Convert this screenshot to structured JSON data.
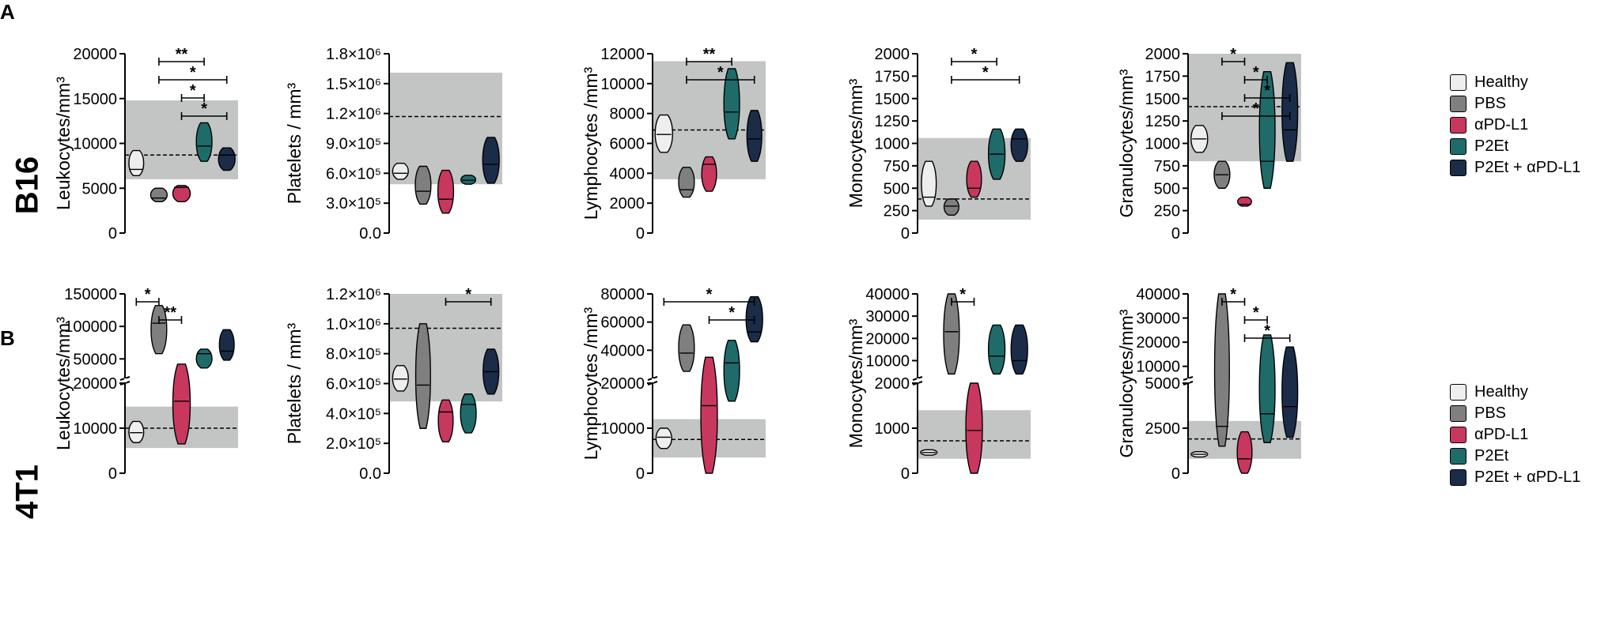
{
  "figure": {
    "panel_labels": {
      "a": "A",
      "b": "B"
    },
    "row_labels": {
      "top": "B16",
      "bottom": "4T1"
    }
  },
  "legend": [
    {
      "label": "Healthy",
      "color": "#eeeeee"
    },
    {
      "label": "PBS",
      "color": "#7f7f7f"
    },
    {
      "label": "αPD-L1",
      "color": "#c8385e"
    },
    {
      "label": "P2Et",
      "color": "#1e6b6a"
    },
    {
      "label": "P2Et + αPD-L1",
      "color": "#1a2c48"
    }
  ],
  "chart_data": [
    {
      "type": "violin",
      "row": "B16",
      "ylabel": "Leukocytes/mm³",
      "ylim": [
        0,
        20000
      ],
      "yticks": [
        {
          "v": 0,
          "t": "0"
        },
        {
          "v": 5000,
          "t": "5000"
        },
        {
          "v": 10000,
          "t": "10000"
        },
        {
          "v": 15000,
          "t": "15000"
        },
        {
          "v": 20000,
          "t": "20000"
        }
      ],
      "reference_band": [
        6000,
        14800
      ],
      "reference_line": 8700,
      "groups": [
        {
          "name": "Healthy",
          "min": 6400,
          "max": 9200,
          "median": 7100,
          "width": 0.85
        },
        {
          "name": "PBS",
          "min": 3500,
          "max": 5000,
          "median": 3900,
          "width": 0.95
        },
        {
          "name": "αPD-L1",
          "min": 3500,
          "max": 5300,
          "median": 5100,
          "width": 1.0
        },
        {
          "name": "P2Et",
          "min": 8000,
          "max": 12300,
          "median": 9700,
          "width": 0.9
        },
        {
          "name": "P2Et + αPD-L1",
          "min": 7000,
          "max": 9500,
          "median": 8700,
          "width": 0.95
        }
      ],
      "significance": [
        {
          "from": 1,
          "to": 3,
          "label": "**"
        },
        {
          "from": 1,
          "to": 4,
          "label": "*"
        },
        {
          "from": 2,
          "to": 3,
          "label": "*"
        },
        {
          "from": 2,
          "to": 4,
          "label": "*"
        }
      ]
    },
    {
      "type": "violin",
      "row": "B16",
      "ylabel": "Platelets / mm³",
      "ylim": [
        0,
        1800000
      ],
      "yticks": [
        {
          "v": 0,
          "t": "0.0"
        },
        {
          "v": 300000,
          "t": "3.0×10⁵"
        },
        {
          "v": 600000,
          "t": "6.0×10⁵"
        },
        {
          "v": 900000,
          "t": "9.0×10⁵"
        },
        {
          "v": 1200000,
          "t": "1.2×10⁶"
        },
        {
          "v": 1500000,
          "t": "1.5×10⁶"
        },
        {
          "v": 1800000,
          "t": "1.8×10⁶"
        }
      ],
      "reference_band": [
        490000,
        1610000
      ],
      "reference_line": 1170000,
      "groups": [
        {
          "name": "Healthy",
          "min": 540000,
          "max": 700000,
          "median": 600000,
          "width": 0.9
        },
        {
          "name": "PBS",
          "min": 290000,
          "max": 670000,
          "median": 420000,
          "width": 0.9
        },
        {
          "name": "αPD-L1",
          "min": 200000,
          "max": 630000,
          "median": 340000,
          "width": 0.9
        },
        {
          "name": "P2Et",
          "min": 490000,
          "max": 580000,
          "median": 530000,
          "width": 0.85
        },
        {
          "name": "P2Et + αPD-L1",
          "min": 500000,
          "max": 960000,
          "median": 690000,
          "width": 0.95
        }
      ],
      "significance": []
    },
    {
      "type": "violin",
      "row": "B16",
      "ylabel": "Lymphocytes /mm³",
      "ylim": [
        0,
        12000
      ],
      "yticks": [
        {
          "v": 0,
          "t": "0"
        },
        {
          "v": 2000,
          "t": "2000"
        },
        {
          "v": 4000,
          "t": "4000"
        },
        {
          "v": 6000,
          "t": "6000"
        },
        {
          "v": 8000,
          "t": "8000"
        },
        {
          "v": 10000,
          "t": "10000"
        },
        {
          "v": 12000,
          "t": "12000"
        }
      ],
      "reference_band": [
        3600,
        11500
      ],
      "reference_line": 6900,
      "groups": [
        {
          "name": "Healthy",
          "min": 5400,
          "max": 7900,
          "median": 6600,
          "width": 1.0
        },
        {
          "name": "PBS",
          "min": 2400,
          "max": 4400,
          "median": 2900,
          "width": 0.9
        },
        {
          "name": "αPD-L1",
          "min": 2800,
          "max": 5100,
          "median": 4600,
          "width": 0.85
        },
        {
          "name": "P2Et",
          "min": 6300,
          "max": 11000,
          "median": 8100,
          "width": 0.9
        },
        {
          "name": "P2Et + αPD-L1",
          "min": 4800,
          "max": 8200,
          "median": 6300,
          "width": 0.85
        }
      ],
      "significance": [
        {
          "from": 1,
          "to": 3,
          "label": "**"
        },
        {
          "from": 1,
          "to": 4,
          "label": "*"
        }
      ]
    },
    {
      "type": "violin",
      "row": "B16",
      "ylabel": "Monocytes/mm³",
      "ylim": [
        0,
        2000
      ],
      "yticks": [
        {
          "v": 0,
          "t": "0"
        },
        {
          "v": 250,
          "t": "250"
        },
        {
          "v": 500,
          "t": "500"
        },
        {
          "v": 750,
          "t": "750"
        },
        {
          "v": 1000,
          "t": "1000"
        },
        {
          "v": 1250,
          "t": "1250"
        },
        {
          "v": 1500,
          "t": "1500"
        },
        {
          "v": 1750,
          "t": "1750"
        },
        {
          "v": 2000,
          "t": "2000"
        }
      ],
      "reference_band": [
        150,
        1060
      ],
      "reference_line": 380,
      "groups": [
        {
          "name": "Healthy",
          "min": 300,
          "max": 800,
          "median": 400,
          "width": 0.85
        },
        {
          "name": "PBS",
          "min": 200,
          "max": 380,
          "median": 300,
          "width": 0.85
        },
        {
          "name": "αPD-L1",
          "min": 400,
          "max": 800,
          "median": 500,
          "width": 0.85
        },
        {
          "name": "P2Et",
          "min": 600,
          "max": 1160,
          "median": 880,
          "width": 0.95
        },
        {
          "name": "P2Et + αPD-L1",
          "min": 800,
          "max": 1160,
          "median": 1050,
          "width": 0.95
        }
      ],
      "significance": [
        {
          "from": 1,
          "to": 3,
          "label": "*"
        },
        {
          "from": 1,
          "to": 4,
          "label": "*"
        }
      ]
    },
    {
      "type": "violin",
      "row": "B16",
      "ylabel": "Granulocytes/mm³",
      "ylim": [
        0,
        2000
      ],
      "yticks": [
        {
          "v": 0,
          "t": "0"
        },
        {
          "v": 250,
          "t": "250"
        },
        {
          "v": 500,
          "t": "500"
        },
        {
          "v": 750,
          "t": "750"
        },
        {
          "v": 1000,
          "t": "1000"
        },
        {
          "v": 1250,
          "t": "1250"
        },
        {
          "v": 1500,
          "t": "1500"
        },
        {
          "v": 1750,
          "t": "1750"
        },
        {
          "v": 2000,
          "t": "2000"
        }
      ],
      "reference_band": [
        800,
        2000
      ],
      "reference_line": 1410,
      "groups": [
        {
          "name": "Healthy",
          "min": 900,
          "max": 1200,
          "median": 1050,
          "width": 0.95
        },
        {
          "name": "PBS",
          "min": 500,
          "max": 800,
          "median": 650,
          "width": 0.9
        },
        {
          "name": "αPD-L1",
          "min": 300,
          "max": 400,
          "median": 320,
          "width": 0.8
        },
        {
          "name": "P2Et",
          "min": 500,
          "max": 1800,
          "median": 800,
          "width": 0.9
        },
        {
          "name": "P2Et + αPD-L1",
          "min": 800,
          "max": 1900,
          "median": 1150,
          "width": 0.9
        }
      ],
      "significance": [
        {
          "from": 1,
          "to": 2,
          "label": "*"
        },
        {
          "from": 2,
          "to": 3,
          "label": "*"
        },
        {
          "from": 2,
          "to": 4,
          "label": "*"
        },
        {
          "from": 1,
          "to": 4,
          "label": "*"
        }
      ]
    },
    {
      "type": "violin",
      "row": "4T1",
      "axis_break": true,
      "ylabel": "Leukocytes/mm³",
      "lower_range": [
        0,
        20000
      ],
      "upper_range": [
        20000,
        150000
      ],
      "yticks": [
        {
          "v": 0,
          "t": "0"
        },
        {
          "v": 10000,
          "t": "10000"
        },
        {
          "v": 20000,
          "t": "20000"
        },
        {
          "v": 50000,
          "t": "50000"
        },
        {
          "v": 100000,
          "t": "100000"
        },
        {
          "v": 150000,
          "t": "150000"
        }
      ],
      "reference_band": [
        5600,
        14800
      ],
      "reference_line": 10000,
      "groups": [
        {
          "name": "Healthy",
          "min": 6800,
          "max": 11500,
          "median": 9000,
          "width": 0.85
        },
        {
          "name": "PBS",
          "min": 58000,
          "max": 132000,
          "median": 105000,
          "width": 0.9
        },
        {
          "name": "αPD-L1",
          "min": 6500,
          "max": 42000,
          "median": 16000,
          "width": 1.0
        },
        {
          "name": "P2Et",
          "min": 36000,
          "max": 65000,
          "median": 58000,
          "width": 0.9
        },
        {
          "name": "P2Et + αPD-L1",
          "min": 48000,
          "max": 95000,
          "median": 62000,
          "width": 0.85
        }
      ],
      "significance": [
        {
          "from": 0,
          "to": 1,
          "label": "*"
        },
        {
          "from": 1,
          "to": 2,
          "label": "**"
        }
      ]
    },
    {
      "type": "violin",
      "row": "4T1",
      "ylabel": "Platelets / mm³",
      "ylim": [
        0,
        1200000
      ],
      "yticks": [
        {
          "v": 0,
          "t": "0.0"
        },
        {
          "v": 200000,
          "t": "2.0×10⁵"
        },
        {
          "v": 400000,
          "t": "4.0×10⁵"
        },
        {
          "v": 600000,
          "t": "6.0×10⁵"
        },
        {
          "v": 800000,
          "t": "8.0×10⁵"
        },
        {
          "v": 1000000,
          "t": "1.0×10⁶"
        },
        {
          "v": 1200000,
          "t": "1.2×10⁶"
        }
      ],
      "reference_band": [
        480000,
        1200000
      ],
      "reference_line": 970000,
      "groups": [
        {
          "name": "Healthy",
          "min": 550000,
          "max": 720000,
          "median": 630000,
          "width": 0.9
        },
        {
          "name": "PBS",
          "min": 300000,
          "max": 1000000,
          "median": 590000,
          "width": 0.85
        },
        {
          "name": "αPD-L1",
          "min": 210000,
          "max": 490000,
          "median": 410000,
          "width": 0.85
        },
        {
          "name": "P2Et",
          "min": 270000,
          "max": 530000,
          "median": 460000,
          "width": 0.9
        },
        {
          "name": "P2Et + αPD-L1",
          "min": 530000,
          "max": 830000,
          "median": 680000,
          "width": 0.9
        }
      ],
      "significance": [
        {
          "from": 2,
          "to": 4,
          "label": "*"
        }
      ]
    },
    {
      "type": "violin",
      "row": "4T1",
      "axis_break": true,
      "ylabel": "Lymphocytes /mm³",
      "lower_range": [
        0,
        20000
      ],
      "upper_range": [
        20000,
        80000
      ],
      "yticks": [
        {
          "v": 0,
          "t": "0"
        },
        {
          "v": 10000,
          "t": "10000"
        },
        {
          "v": 20000,
          "t": "20000"
        },
        {
          "v": 40000,
          "t": "40000"
        },
        {
          "v": 60000,
          "t": "60000"
        },
        {
          "v": 80000,
          "t": "80000"
        }
      ],
      "reference_band": [
        3500,
        12000
      ],
      "reference_line": 7500,
      "groups": [
        {
          "name": "Healthy",
          "min": 5500,
          "max": 10000,
          "median": 8000,
          "width": 0.9
        },
        {
          "name": "PBS",
          "min": 25000,
          "max": 58000,
          "median": 38000,
          "width": 0.9
        },
        {
          "name": "αPD-L1",
          "min": 0,
          "max": 35000,
          "median": 15000,
          "width": 0.95
        },
        {
          "name": "P2Et",
          "min": 16000,
          "max": 47000,
          "median": 31000,
          "width": 0.9
        },
        {
          "name": "P2Et + αPD-L1",
          "min": 46000,
          "max": 78000,
          "median": 53000,
          "width": 0.95
        }
      ],
      "significance": [
        {
          "from": 0,
          "to": 4,
          "label": "*"
        },
        {
          "from": 2,
          "to": 4,
          "label": "*"
        }
      ]
    },
    {
      "type": "violin",
      "row": "4T1",
      "axis_break": true,
      "ylabel": "Monocytes/mm³",
      "lower_range": [
        0,
        2000
      ],
      "upper_range": [
        2000,
        40000
      ],
      "yticks": [
        {
          "v": 0,
          "t": "0"
        },
        {
          "v": 1000,
          "t": "1000"
        },
        {
          "v": 2000,
          "t": "2000"
        },
        {
          "v": 10000,
          "t": "10000"
        },
        {
          "v": 20000,
          "t": "20000"
        },
        {
          "v": 30000,
          "t": "30000"
        },
        {
          "v": 40000,
          "t": "40000"
        }
      ],
      "reference_band": [
        320,
        1400
      ],
      "reference_line": 720,
      "groups": [
        {
          "name": "Healthy",
          "min": 400,
          "max": 520,
          "median": 460,
          "width": 0.95
        },
        {
          "name": "PBS",
          "min": 4000,
          "max": 40000,
          "median": 23000,
          "width": 0.9
        },
        {
          "name": "αPD-L1",
          "min": 0,
          "max": 2000,
          "median": 950,
          "width": 0.95
        },
        {
          "name": "P2Et",
          "min": 4000,
          "max": 26000,
          "median": 12000,
          "width": 0.95
        },
        {
          "name": "P2Et + αPD-L1",
          "min": 4000,
          "max": 26000,
          "median": 10000,
          "width": 0.95
        }
      ],
      "significance": [
        {
          "from": 1,
          "to": 2,
          "label": "*"
        }
      ]
    },
    {
      "type": "violin",
      "row": "4T1",
      "axis_break": true,
      "ylabel": "Granulocytes/mm³",
      "lower_range": [
        0,
        5000
      ],
      "upper_range": [
        5000,
        40000
      ],
      "yticks": [
        {
          "v": 0,
          "t": "0"
        },
        {
          "v": 2500,
          "t": "2500"
        },
        {
          "v": 5000,
          "t": "5000"
        },
        {
          "v": 10000,
          "t": "10000"
        },
        {
          "v": 20000,
          "t": "20000"
        },
        {
          "v": 30000,
          "t": "30000"
        },
        {
          "v": 40000,
          "t": "40000"
        }
      ],
      "reference_band": [
        800,
        2900
      ],
      "reference_line": 1900,
      "groups": [
        {
          "name": "Healthy",
          "min": 900,
          "max": 1200,
          "median": 1050,
          "width": 0.95
        },
        {
          "name": "PBS",
          "min": 1500,
          "max": 40000,
          "median": 2600,
          "width": 0.85
        },
        {
          "name": "αPD-L1",
          "min": 0,
          "max": 2300,
          "median": 800,
          "width": 0.85
        },
        {
          "name": "P2Et",
          "min": 1700,
          "max": 23000,
          "median": 3300,
          "width": 0.9
        },
        {
          "name": "P2Et + αPD-L1",
          "min": 2000,
          "max": 18000,
          "median": 3700,
          "width": 0.9
        }
      ],
      "significance": [
        {
          "from": 1,
          "to": 2,
          "label": "*"
        },
        {
          "from": 2,
          "to": 3,
          "label": "*"
        },
        {
          "from": 2,
          "to": 4,
          "label": "*"
        }
      ]
    }
  ]
}
